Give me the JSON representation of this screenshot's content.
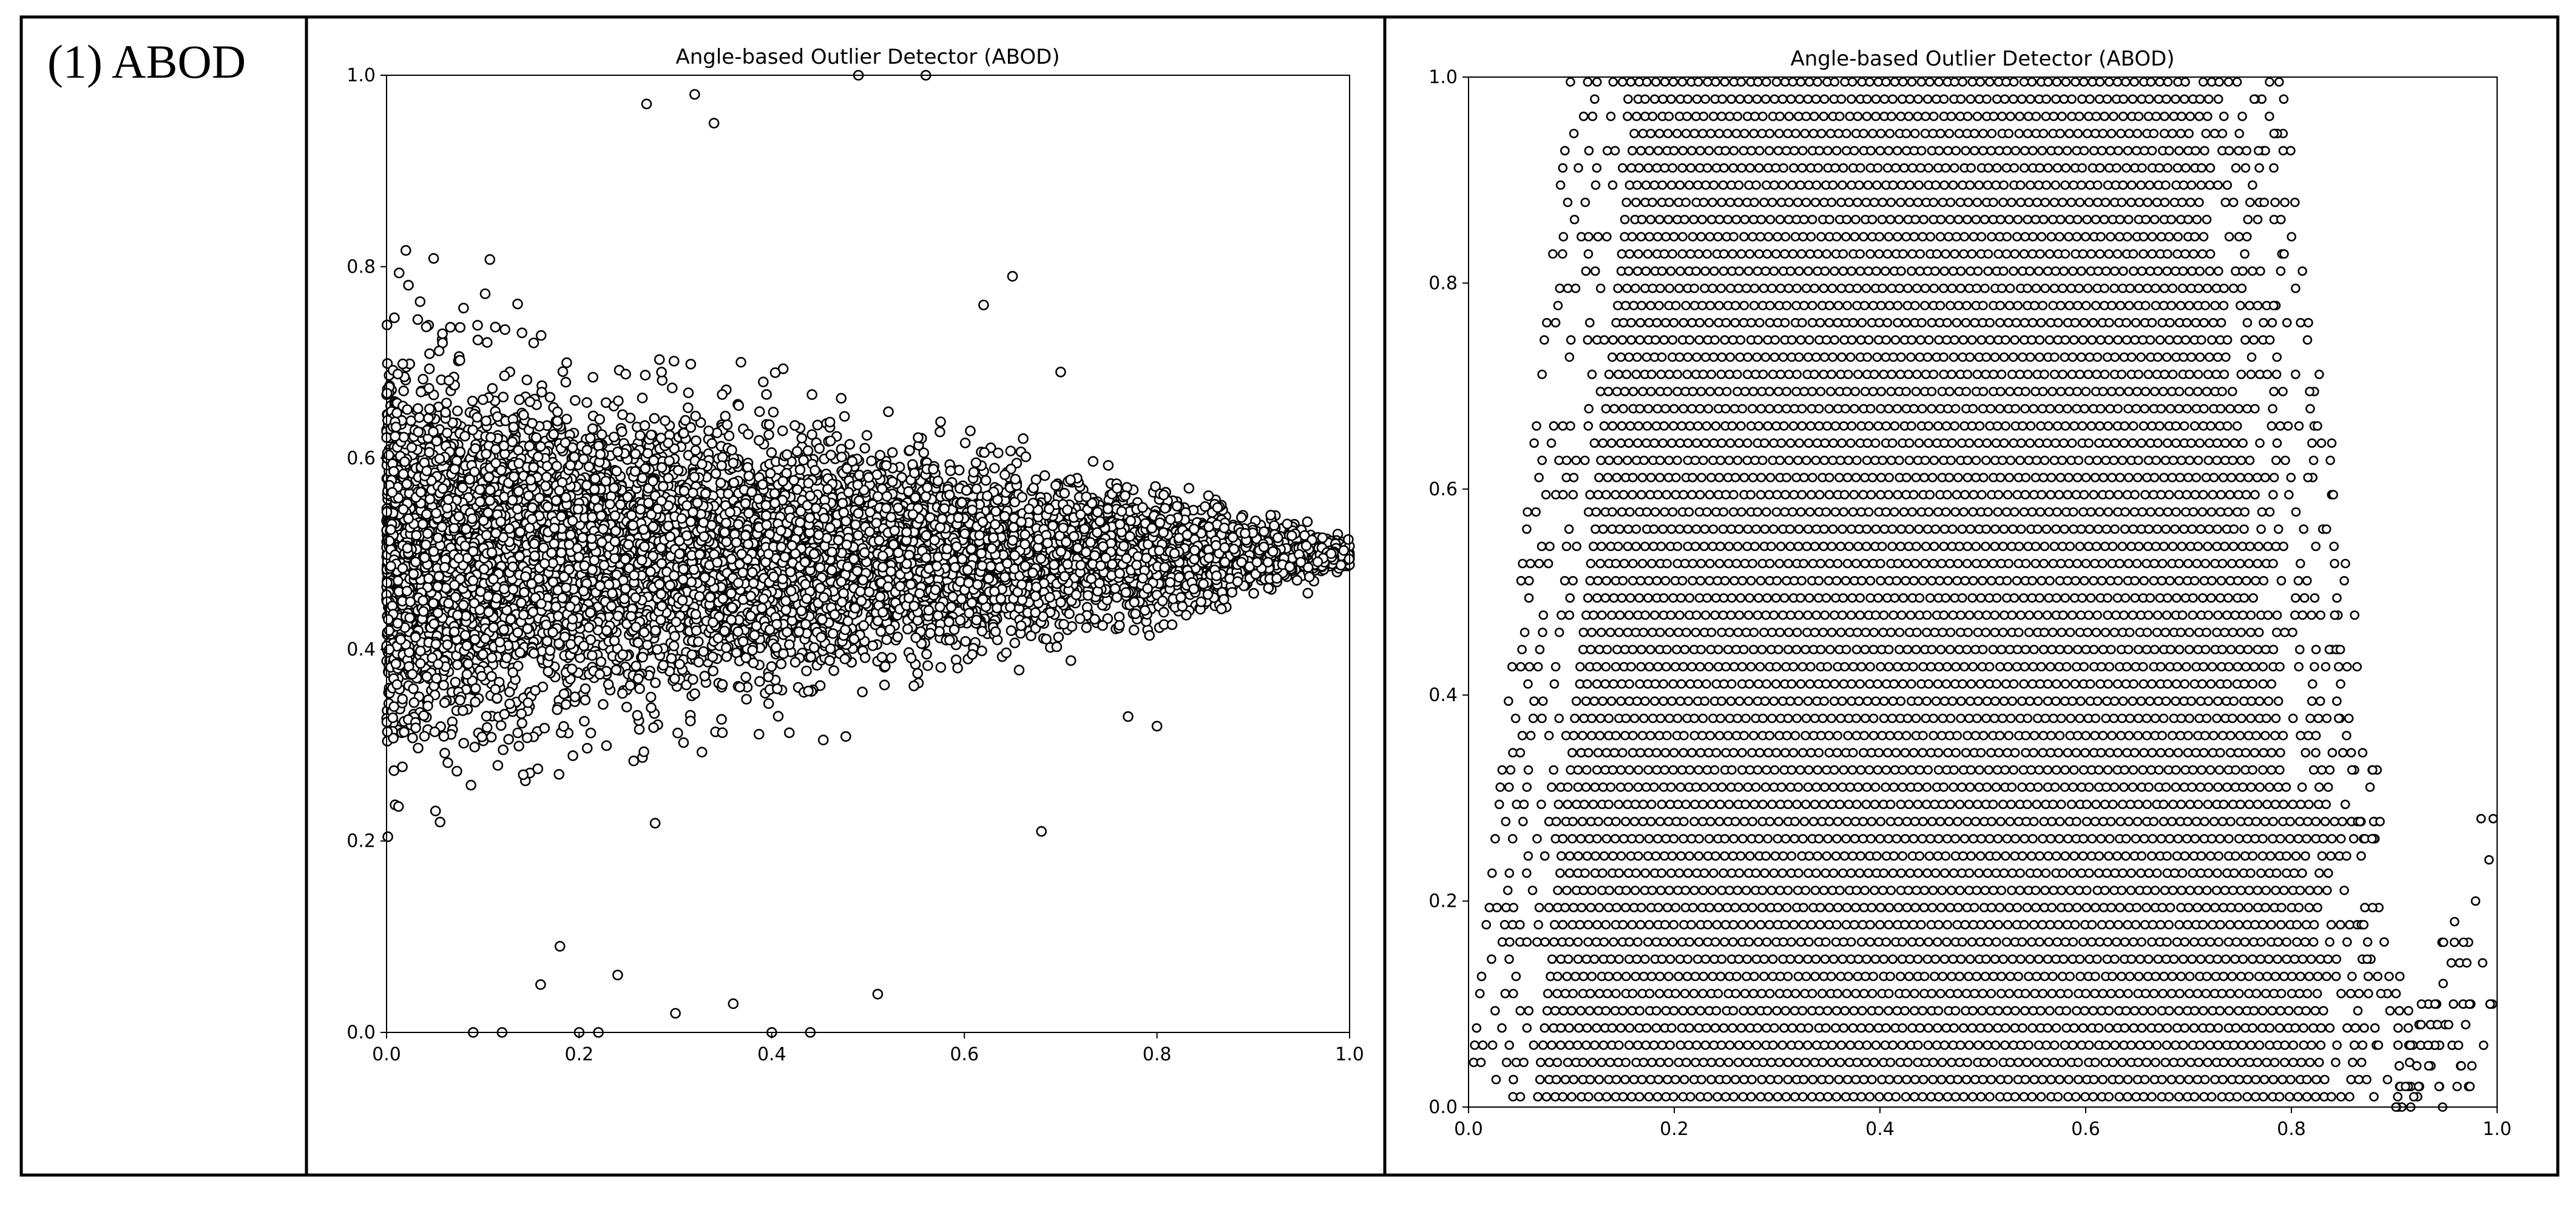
{
  "row": {
    "label": "(1) ABOD"
  },
  "chart_data": [
    {
      "id": "left",
      "type": "scatter",
      "title": "Angle-based Outlier Detector (ABOD)",
      "xlabel": "",
      "ylabel": "",
      "xlim": [
        0,
        1
      ],
      "ylim": [
        0,
        1
      ],
      "xticks": [
        0.0,
        0.2,
        0.4,
        0.6,
        0.8,
        1.0
      ],
      "yticks": [
        0.0,
        0.2,
        0.4,
        0.6,
        0.8,
        1.0
      ],
      "xtick_labels": [
        "0.0",
        "0.2",
        "0.4",
        "0.6",
        "0.8",
        "1.0"
      ],
      "ytick_labels": [
        "0.0",
        "0.2",
        "0.4",
        "0.6",
        "0.8",
        "1.0"
      ],
      "grid": false,
      "marker": {
        "shape": "circle",
        "fill": "#ffffff",
        "edge": "#000000"
      },
      "distribution": {
        "shape": "funnel",
        "center_y": 0.5,
        "half_spread_at_x0": 0.2,
        "x_max": 1.0,
        "approx_points": 9000
      },
      "outliers": [
        [
          0.09,
          0.0
        ],
        [
          0.12,
          0.0
        ],
        [
          0.2,
          0.0
        ],
        [
          0.22,
          0.0
        ],
        [
          0.3,
          0.02
        ],
        [
          0.4,
          0.0
        ],
        [
          0.44,
          0.0
        ],
        [
          0.51,
          0.04
        ],
        [
          0.36,
          0.03
        ],
        [
          0.27,
          0.97
        ],
        [
          0.34,
          0.95
        ],
        [
          0.49,
          1.0
        ],
        [
          0.56,
          1.0
        ],
        [
          0.32,
          0.98
        ],
        [
          0.65,
          0.79
        ],
        [
          0.7,
          0.69
        ],
        [
          0.68,
          0.21
        ],
        [
          0.8,
          0.32
        ],
        [
          0.77,
          0.33
        ],
        [
          0.62,
          0.76
        ],
        [
          0.16,
          0.05
        ],
        [
          0.24,
          0.06
        ],
        [
          0.18,
          0.09
        ]
      ]
    },
    {
      "id": "right",
      "type": "scatter",
      "title": "Angle-based Outlier Detector (ABOD)",
      "xlabel": "",
      "ylabel": "",
      "xlim": [
        0,
        1
      ],
      "ylim": [
        0,
        1
      ],
      "xticks": [
        0.0,
        0.2,
        0.4,
        0.6,
        0.8,
        1.0
      ],
      "yticks": [
        0.0,
        0.2,
        0.4,
        0.6,
        0.8,
        1.0
      ],
      "xtick_labels": [
        "0.0",
        "0.2",
        "0.4",
        "0.6",
        "0.8",
        "1.0"
      ],
      "ytick_labels": [
        "0.0",
        "0.2",
        "0.4",
        "0.6",
        "0.8",
        "1.0"
      ],
      "grid": false,
      "marker": {
        "shape": "circle",
        "fill": "#ffffff",
        "edge": "#000000"
      },
      "distribution": {
        "shape": "horizontal-bands",
        "band_step_y": 0.0167,
        "x_step": 0.0083,
        "right_edge_x_at_y0": 0.89,
        "right_edge_x_at_y1": 0.75,
        "left_edge_x_at_y0": 0.0,
        "left_edge_x_at_y1": 0.1
      },
      "outlier_cluster": {
        "x_range": [
          0.9,
          1.0
        ],
        "y_range": [
          0.0,
          0.38
        ]
      }
    }
  ]
}
